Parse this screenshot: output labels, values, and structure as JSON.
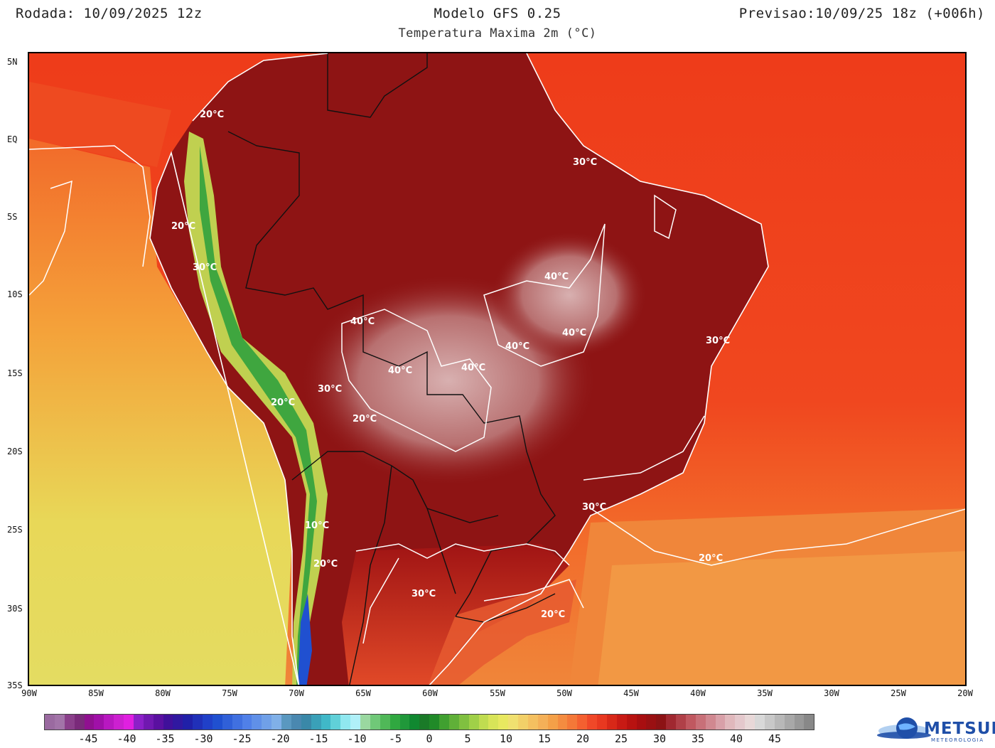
{
  "header": {
    "run": "Rodada: 10/09/2025 12z",
    "model": "Modelo GFS 0.25",
    "forecast": "Previsao:10/09/25 18z (+006h)",
    "variable": "Temperatura Maxima 2m (°C)"
  },
  "map": {
    "lat_labels": [
      "5N",
      "EQ",
      "5S",
      "10S",
      "15S",
      "20S",
      "25S",
      "30S",
      "35S"
    ],
    "lon_labels": [
      "90W",
      "85W",
      "80W",
      "75W",
      "70W",
      "65W",
      "60W",
      "55W",
      "50W",
      "45W",
      "40W",
      "35W",
      "30W",
      "25W",
      "20W"
    ],
    "contour_labels": [
      "30°C",
      "20°C",
      "20°C",
      "30°C",
      "20°C",
      "20°C",
      "10°C",
      "20°C",
      "30°C",
      "20°C",
      "40°C",
      "40°C",
      "40°C",
      "40°C",
      "40°C",
      "40°C",
      "30°C",
      "30°C",
      "30°C",
      "20°C"
    ],
    "colors": {
      "ocean_warm": "#f0471f",
      "ocean_mild": "#f4a23a",
      "ocean_cool": "#e8e060",
      "land_hot": "#8e1414",
      "land_very_hot": "#d4a8a8",
      "andes_cool": "#3fa63f"
    }
  },
  "colorbar": {
    "ticks": [
      "-45",
      "-40",
      "-35",
      "-30",
      "-25",
      "-20",
      "-15",
      "-10",
      "-5",
      "0",
      "5",
      "10",
      "15",
      "20",
      "25",
      "30",
      "35",
      "40",
      "45"
    ],
    "colors": [
      "#9a6aa0",
      "#a274a8",
      "#8a3f8a",
      "#7a2a7a",
      "#901090",
      "#a010a8",
      "#b818c0",
      "#cc20d0",
      "#e020e0",
      "#8c20c8",
      "#7018b0",
      "#5a10a0",
      "#40109a",
      "#3018a0",
      "#2020a8",
      "#2030b8",
      "#2040c8",
      "#2050d0",
      "#3060d8",
      "#4070e0",
      "#5080e8",
      "#6090e8",
      "#70a0e8",
      "#80b0e8",
      "#5a98c0",
      "#4a88b0",
      "#3a88a8",
      "#3aa0b8",
      "#40b8c8",
      "#60d0d8",
      "#90e8f0",
      "#b0f0f8",
      "#9ad8a0",
      "#70c878",
      "#50b858",
      "#30a840",
      "#20983a",
      "#108830",
      "#1a7a28",
      "#208a28",
      "#40a030",
      "#60b038",
      "#80c040",
      "#a0d048",
      "#c0dc50",
      "#d8e458",
      "#e8e860",
      "#f0e070",
      "#f2d068",
      "#f4c060",
      "#f4b058",
      "#f4a048",
      "#f48c40",
      "#f47838",
      "#f46030",
      "#f04828",
      "#e83820",
      "#d82818",
      "#c81a14",
      "#b81210",
      "#a80e10",
      "#9a1012",
      "#8c1214",
      "#a02830",
      "#b04048",
      "#c05860",
      "#c87078",
      "#d08890",
      "#d8a0a8",
      "#e0b8bc",
      "#e4c8cc",
      "#e8d8d8",
      "#d8d8d8",
      "#c8c8c8",
      "#b8b8b8",
      "#a8a8a8",
      "#989898",
      "#888888"
    ]
  },
  "logo": {
    "name": "METSUL",
    "sub": "METEOROLOGIA"
  }
}
